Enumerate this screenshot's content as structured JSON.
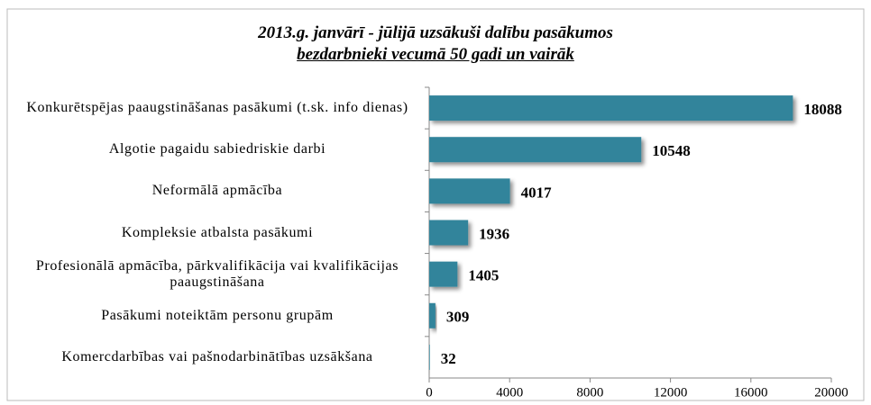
{
  "chart_data": {
    "type": "bar",
    "orientation": "horizontal",
    "title": "2013.g. janvārī - jūlijā uzsākuši dalību pasākumos",
    "subtitle": "bezdarbnieki vecumā 50 gadi un vairāk",
    "categories": [
      "Konkurētspējas paaugstināšanas pasākumi (t.sk. info dienas)",
      "Algotie pagaidu sabiedriskie darbi",
      "Neformālā apmācība",
      "Kompleksie atbalsta pasākumi",
      "Profesionālā apmācība, pārkvalifikācija vai kvalifikācijas paaugstināšana",
      "Pasākumi noteiktām personu grupām",
      "Komercdarbības vai pašnodarbinātības uzsākšana"
    ],
    "values": [
      18088,
      10548,
      4017,
      1936,
      1405,
      309,
      32
    ],
    "color": "#31849b",
    "xlim": [
      0,
      20000
    ],
    "xticks": [
      0,
      4000,
      8000,
      12000,
      16000,
      20000
    ],
    "grid": false
  }
}
